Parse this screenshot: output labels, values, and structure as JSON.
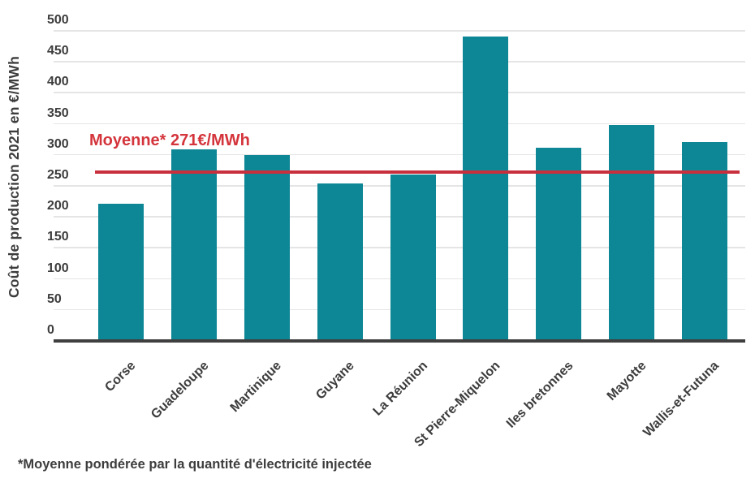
{
  "chart_data": {
    "type": "bar",
    "title": "",
    "ylabel": "Coût de production 2021 en €/MWh",
    "xlabel": "",
    "unit": "€/MWh",
    "ylim": [
      0,
      500
    ],
    "yticks": [
      0,
      50,
      100,
      150,
      200,
      250,
      300,
      350,
      400,
      450,
      500
    ],
    "grid": true,
    "legend": null,
    "categories": [
      "Corse",
      "Guadeloupe",
      "Martinique",
      "Guyane",
      "La Réunion",
      "St Pierre-Miquelon",
      "Iles bretonnes",
      "Mayotte",
      "Wallis-et-Futuna"
    ],
    "values": [
      220,
      308,
      298,
      252,
      267,
      489,
      310,
      347,
      320
    ],
    "mean_line": {
      "value": 271,
      "label": "Moyenne* 271€/MWh"
    },
    "footnote": "*Moyenne pondérée par la quantité d'électricité injectée",
    "colors": {
      "bar": "#0d8695",
      "mean_line": "#c8303e",
      "mean_label": "#d4353c",
      "grid": "#e5e5e5",
      "axis": "#3f3f3f",
      "text": "#3d3d3d"
    }
  }
}
